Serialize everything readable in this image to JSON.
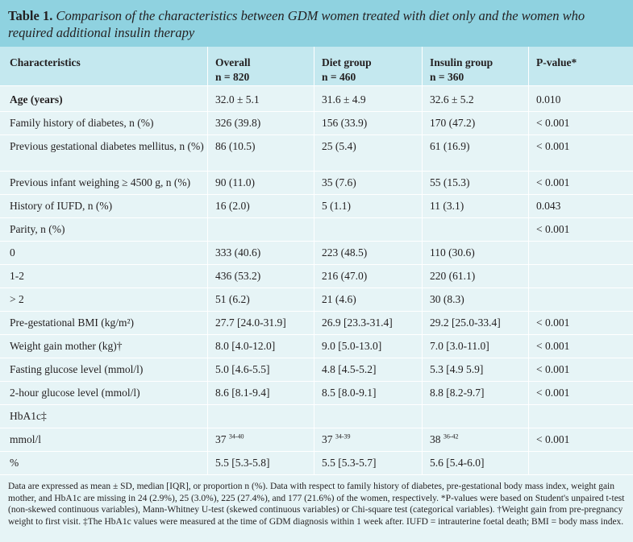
{
  "title": {
    "label": "Table 1.",
    "text": "Comparison of the characteristics between GDM women treated with diet only and the women who required additional insulin therapy"
  },
  "header": {
    "col1": "Characteristics",
    "col2": "Overall",
    "col2_n": "n = 820",
    "col3": "Diet group",
    "col3_n": "n = 460",
    "col4": "Insulin group",
    "col4_n": "n = 360",
    "col5": "P-value*"
  },
  "rows": [
    {
      "label": "Age (years)",
      "overall": "32.0 ± 5.1",
      "diet": "31.6 ± 4.9",
      "insulin": "32.6 ± 5.2",
      "p": "0.010"
    },
    {
      "label": "Family history of diabetes, n (%)",
      "overall": "326 (39.8)",
      "diet": "156 (33.9)",
      "insulin": "170 (47.2)",
      "p": "< 0.001"
    },
    {
      "label": "Previous gestational diabetes mellitus, n (%)",
      "overall": "86 (10.5)",
      "diet": "25 (5.4)",
      "insulin": "61 (16.9)",
      "p": "< 0.001"
    },
    {
      "label": "Previous infant weighing ≥ 4500 g, n (%)",
      "overall": "90 (11.0)",
      "diet": "35 (7.6)",
      "insulin": "55 (15.3)",
      "p": "< 0.001"
    },
    {
      "label": "History of IUFD, n (%)",
      "overall": "16 (2.0)",
      "diet": "5 (1.1)",
      "insulin": "11 (3.1)",
      "p": "0.043"
    },
    {
      "label": "Parity, n (%)",
      "overall": "",
      "diet": "",
      "insulin": "",
      "p": "< 0.001"
    },
    {
      "label": "0",
      "overall": "333 (40.6)",
      "diet": "223 (48.5)",
      "insulin": "110 (30.6)",
      "p": ""
    },
    {
      "label": "1-2",
      "overall": "436 (53.2)",
      "diet": "216 (47.0)",
      "insulin": "220 (61.1)",
      "p": ""
    },
    {
      "label": "> 2",
      "overall": "51 (6.2)",
      "diet": "21 (4.6)",
      "insulin": "30 (8.3)",
      "p": ""
    },
    {
      "label": "Pre-gestational BMI (kg/m²)",
      "overall": "27.7 [24.0-31.9]",
      "diet": "26.9 [23.3-31.4]",
      "insulin": "29.2 [25.0-33.4]",
      "p": "< 0.001"
    },
    {
      "label": "Weight gain mother (kg)†",
      "overall": "8.0 [4.0-12.0]",
      "diet": "9.0 [5.0-13.0]",
      "insulin": "7.0 [3.0-11.0]",
      "p": "< 0.001"
    },
    {
      "label": "Fasting glucose level (mmol/l)",
      "overall": "5.0 [4.6-5.5]",
      "diet": "4.8 [4.5-5.2]",
      "insulin": "5.3 [4.9 5.9]",
      "p": "< 0.001"
    },
    {
      "label": "2-hour glucose level (mmol/l)",
      "overall": "8.6 [8.1-9.4]",
      "diet": "8.5 [8.0-9.1]",
      "insulin": "8.8 [8.2-9.7]",
      "p": "< 0.001"
    },
    {
      "label": "HbA1c‡",
      "overall": "",
      "diet": "",
      "insulin": "",
      "p": ""
    },
    {
      "label": "mmol/l",
      "overall": "37",
      "overall_sup": "34-40",
      "diet": "37",
      "diet_sup": "34-39",
      "insulin": "38",
      "insulin_sup": "36-42",
      "p": "< 0.001"
    },
    {
      "label": "%",
      "overall": "5.5 [5.3-5.8]",
      "diet": "5.5 [5.3-5.7]",
      "insulin": "5.6 [5.4-6.0]",
      "p": ""
    }
  ],
  "footnote": "Data are expressed as mean ± SD, median [IQR], or proportion n (%). Data with respect to family history of diabetes, pre-gestational body mass index, weight gain mother, and HbA1c are missing in 24 (2.9%), 25 (3.0%), 225 (27.4%), and 177 (21.6%) of the women, respectively. *P-values were based on Student's unpaired t-test (non-skewed continuous variables), Mann-Whitney U-test (skewed continuous variables) or Chi-square test (categorical variables). †Weight gain from pre-pregnancy weight to first visit. ‡The HbA1c values were measured at the time of GDM diagnosis within 1 week after. IUFD = intrauterine foetal death; BMI = body mass index."
}
